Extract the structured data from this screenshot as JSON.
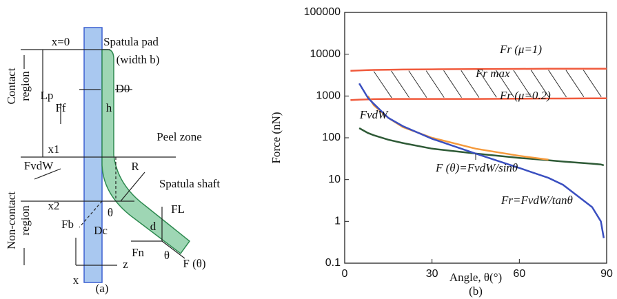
{
  "diagram": {
    "labels": [
      "x=0",
      "Spatula pad",
      "(width b)",
      "Contact",
      "region",
      "Lp",
      "D0",
      "h",
      "Ff",
      "x1",
      "Peel zone",
      "R",
      "FvdW",
      "Non-contact",
      "region",
      "Spatula shaft",
      "x2",
      "θ",
      "FL",
      "d",
      "Fb",
      "Dc",
      "Fn",
      "x",
      "z",
      "θ",
      "F (θ)",
      "(a)"
    ]
  },
  "chart_data": {
    "type": "line",
    "log_y": true,
    "ylabel": "Force (nN)",
    "xlabel": "Angle, θ(°)",
    "panel": "(b)",
    "x": [
      2,
      5,
      8,
      10,
      15,
      20,
      30,
      45,
      60,
      70,
      75,
      85,
      88,
      89,
      90
    ],
    "xlim": [
      0,
      90
    ],
    "xticks": [
      0,
      30,
      60,
      90
    ],
    "ylim": [
      0.1,
      100000
    ],
    "yticks": [
      0.1,
      1,
      10,
      100,
      1000,
      10000,
      100000
    ],
    "annotation": "Fr max",
    "series": [
      {
        "name": "Fr (μ=1)",
        "color": "#f05a3c",
        "values": [
          4000,
          4100,
          4150,
          4200,
          4250,
          4300,
          4350,
          4400,
          4450,
          4500,
          4500,
          4500,
          4500,
          4500,
          4500
        ]
      },
      {
        "name": "Fr (μ=0.2)",
        "color": "#f05a3c",
        "values": [
          800,
          820,
          830,
          840,
          850,
          850,
          850,
          850,
          860,
          870,
          870,
          880,
          880,
          880,
          880
        ]
      },
      {
        "name": "FvdW",
        "color": "#2e5a36",
        "values": [
          null,
          170,
          130,
          115,
          90,
          75,
          55,
          42,
          33,
          29,
          27,
          24,
          23,
          22,
          null
        ]
      },
      {
        "name": "F (θ)=FvdW/sinθ",
        "color": "#f59a3c",
        "values": [
          null,
          null,
          1000,
          600,
          300,
          180,
          100,
          55,
          37,
          30,
          null,
          null,
          null,
          null,
          null
        ]
      },
      {
        "name": "Fr=FvdW/tanθ",
        "color": "#3a4fc0",
        "values": [
          null,
          2000,
          900,
          650,
          300,
          190,
          95,
          42,
          19,
          11,
          7.5,
          2.2,
          1.0,
          0.4,
          null
        ]
      }
    ]
  }
}
